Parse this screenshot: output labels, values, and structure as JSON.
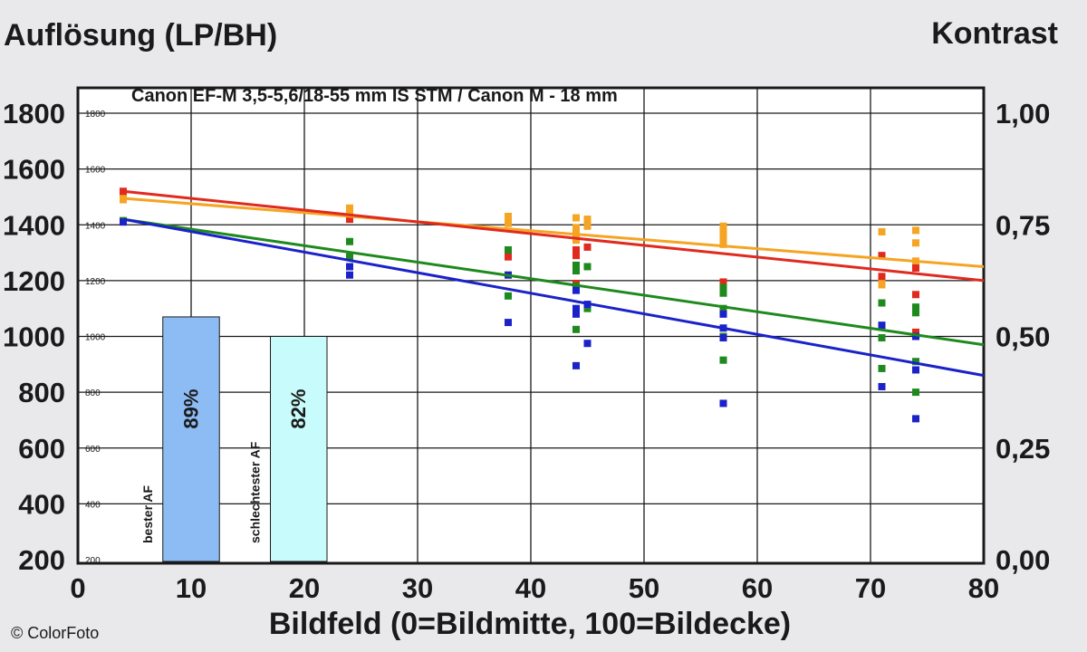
{
  "chart_data": {
    "type": "scatter",
    "title": "Canon EF-M 3,5-5,6/18-55 mm IS STM / Canon M - 18 mm",
    "ylabel_left": "Auflösung (LP/BH)",
    "ylabel_right": "Kontrast",
    "xlabel": "Bildfeld (0=Bildmitte, 100=Bildecke)",
    "copyright": "© ColorFoto",
    "xlim": [
      0,
      80
    ],
    "ylim": [
      200,
      1800
    ],
    "contrast_lim": [
      0,
      1
    ],
    "grid": true,
    "x_ticks": [
      "0",
      "10",
      "20",
      "30",
      "40",
      "50",
      "60",
      "70",
      "80"
    ],
    "y_ticks_left": [
      "200",
      "400",
      "600",
      "800",
      "1000",
      "1200",
      "1400",
      "1600",
      "1800"
    ],
    "y_ticks_inner": [
      "200",
      "400",
      "600",
      "800",
      "1000",
      "1200",
      "1400",
      "1600",
      "1800"
    ],
    "y_ticks_right": [
      "0,00",
      "0,25",
      "0,50",
      "0,75",
      "1,00"
    ],
    "bars": [
      {
        "x_from": 7.5,
        "x_to": 12.5,
        "value": 1070,
        "label": "89%",
        "af_label": "bester AF",
        "color": "#8dbcf5"
      },
      {
        "x_from": 17,
        "x_to": 22,
        "value": 1000,
        "label": "82%",
        "af_label": "schlechtester AF",
        "color": "#c8fbfb"
      }
    ],
    "series": [
      {
        "color": "#f5a423",
        "trend": [
          [
            4,
            1495
          ],
          [
            80,
            1250
          ]
        ],
        "points": [
          [
            4,
            1510
          ],
          [
            4,
            1490
          ],
          [
            24,
            1460
          ],
          [
            24,
            1440
          ],
          [
            24,
            1420
          ],
          [
            38,
            1430
          ],
          [
            38,
            1405
          ],
          [
            44,
            1425
          ],
          [
            44,
            1390
          ],
          [
            44,
            1365
          ],
          [
            44,
            1345
          ],
          [
            45,
            1420
          ],
          [
            45,
            1395
          ],
          [
            57,
            1395
          ],
          [
            57,
            1370
          ],
          [
            57,
            1350
          ],
          [
            57,
            1330
          ],
          [
            71,
            1375
          ],
          [
            71,
            1200
          ],
          [
            71,
            1185
          ],
          [
            74,
            1380
          ],
          [
            74,
            1335
          ],
          [
            74,
            1270
          ]
        ]
      },
      {
        "color": "#e02a1e",
        "trend": [
          [
            4,
            1520
          ],
          [
            80,
            1200
          ]
        ],
        "points": [
          [
            4,
            1520
          ],
          [
            24,
            1420
          ],
          [
            38,
            1300
          ],
          [
            38,
            1285
          ],
          [
            44,
            1310
          ],
          [
            44,
            1290
          ],
          [
            44,
            1190
          ],
          [
            45,
            1320
          ],
          [
            57,
            1195
          ],
          [
            71,
            1290
          ],
          [
            71,
            1215
          ],
          [
            74,
            1245
          ],
          [
            74,
            1150
          ],
          [
            74,
            1015
          ]
        ]
      },
      {
        "color": "#1e8a1e",
        "trend": [
          [
            4,
            1420
          ],
          [
            80,
            970
          ]
        ],
        "points": [
          [
            4,
            1415
          ],
          [
            24,
            1340
          ],
          [
            24,
            1285
          ],
          [
            38,
            1310
          ],
          [
            38,
            1145
          ],
          [
            44,
            1255
          ],
          [
            44,
            1235
          ],
          [
            44,
            1180
          ],
          [
            44,
            1025
          ],
          [
            45,
            1250
          ],
          [
            45,
            1100
          ],
          [
            57,
            1175
          ],
          [
            57,
            1155
          ],
          [
            57,
            1100
          ],
          [
            57,
            1000
          ],
          [
            57,
            915
          ],
          [
            71,
            1120
          ],
          [
            71,
            995
          ],
          [
            71,
            885
          ],
          [
            74,
            1105
          ],
          [
            74,
            1085
          ],
          [
            74,
            910
          ],
          [
            74,
            800
          ]
        ]
      },
      {
        "color": "#1a22c8",
        "trend": [
          [
            4,
            1420
          ],
          [
            80,
            860
          ]
        ],
        "points": [
          [
            4,
            1410
          ],
          [
            24,
            1250
          ],
          [
            24,
            1220
          ],
          [
            38,
            1220
          ],
          [
            38,
            1050
          ],
          [
            44,
            1165
          ],
          [
            44,
            1100
          ],
          [
            44,
            1080
          ],
          [
            44,
            895
          ],
          [
            45,
            1115
          ],
          [
            45,
            975
          ],
          [
            57,
            1080
          ],
          [
            57,
            1030
          ],
          [
            57,
            995
          ],
          [
            57,
            760
          ],
          [
            71,
            1040
          ],
          [
            71,
            820
          ],
          [
            74,
            1000
          ],
          [
            74,
            880
          ],
          [
            74,
            705
          ]
        ]
      }
    ]
  }
}
